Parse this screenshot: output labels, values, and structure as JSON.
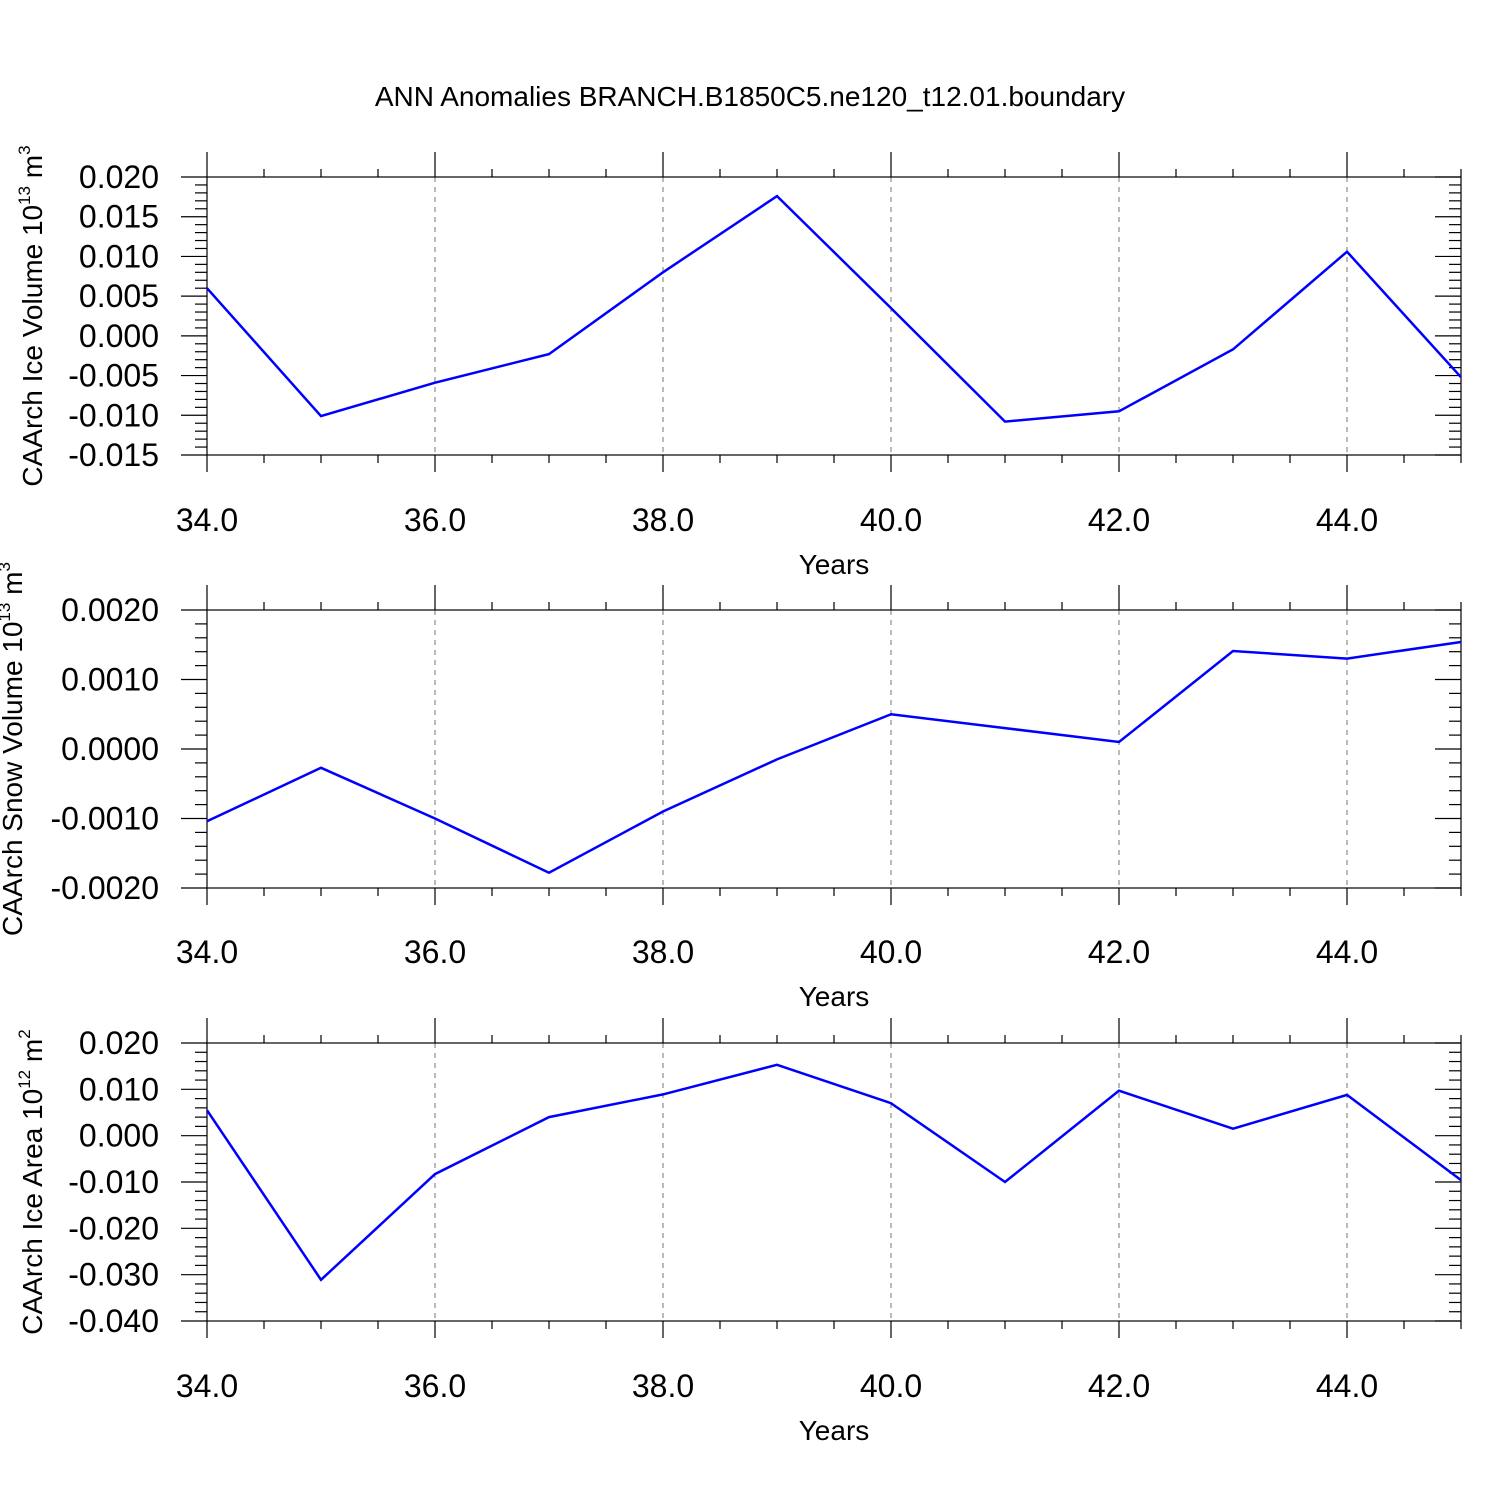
{
  "title": "ANN Anomalies BRANCH.B1850C5.ne120_t12.01.boundary",
  "colors": {
    "line": "#0000ff",
    "axis": "#000000",
    "grid": "#777777"
  },
  "chart_data": [
    {
      "type": "line",
      "ylabel": {
        "text": "CAArch Ice Volume 10",
        "sup": "13",
        "unit": " m",
        "unit_sup": "3"
      },
      "xlabel": "Years",
      "xlim": [
        34,
        45
      ],
      "xticks": [
        34,
        36,
        38,
        40,
        42,
        44
      ],
      "xtick_labels": [
        "34.0",
        "36.0",
        "38.0",
        "40.0",
        "42.0",
        "44.0"
      ],
      "ylim": [
        -0.015,
        0.02
      ],
      "yticks": [
        0.02,
        0.015,
        0.01,
        0.005,
        0,
        -0.005,
        -0.01,
        -0.015
      ],
      "ytick_labels": [
        "0.020",
        "0.015",
        "0.010",
        "0.005",
        "0.000",
        "-0.005",
        "-0.010",
        "-0.015"
      ],
      "grid": "vertical dashed",
      "x": [
        34,
        35,
        36,
        37,
        38,
        39,
        40,
        41,
        42,
        43,
        44,
        45
      ],
      "y": [
        0.006,
        -0.0101,
        -0.0059,
        -0.0023,
        0.008,
        0.0176,
        0.0035,
        -0.0108,
        -0.0095,
        -0.0017,
        0.0106,
        -0.0052
      ]
    },
    {
      "type": "line",
      "ylabel": {
        "text": "CAArch Snow Volume 10",
        "sup": "13",
        "unit": " m",
        "unit_sup": "3"
      },
      "xlabel": "Years",
      "xlim": [
        34,
        45
      ],
      "xticks": [
        34,
        36,
        38,
        40,
        42,
        44
      ],
      "xtick_labels": [
        "34.0",
        "36.0",
        "38.0",
        "40.0",
        "42.0",
        "44.0"
      ],
      "ylim": [
        -0.002,
        0.002
      ],
      "yticks": [
        0.002,
        0.001,
        0,
        -0.001,
        -0.002
      ],
      "ytick_labels": [
        "0.0020",
        "0.0010",
        "0.0000",
        "-0.0010",
        "-0.0020"
      ],
      "grid": "vertical dashed",
      "x": [
        34,
        35,
        36,
        37,
        38,
        39,
        40,
        41,
        42,
        43,
        44,
        45
      ],
      "y": [
        -0.00104,
        -0.00027,
        -0.001,
        -0.00178,
        -0.0009,
        -0.00015,
        0.0005,
        0.0003,
        0.0001,
        0.00141,
        0.0013,
        0.00154
      ]
    },
    {
      "type": "line",
      "ylabel": {
        "text": "CAArch Ice Area 10",
        "sup": "12",
        "unit": " m",
        "unit_sup": "2"
      },
      "xlabel": "Years",
      "xlim": [
        34,
        45
      ],
      "xticks": [
        34,
        36,
        38,
        40,
        42,
        44
      ],
      "xtick_labels": [
        "34.0",
        "36.0",
        "38.0",
        "40.0",
        "42.0",
        "44.0"
      ],
      "ylim": [
        -0.04,
        0.02
      ],
      "yticks": [
        0.02,
        0.01,
        0,
        -0.01,
        -0.02,
        -0.03,
        -0.04
      ],
      "ytick_labels": [
        "0.020",
        "0.010",
        "0.000",
        "-0.010",
        "-0.020",
        "-0.030",
        "-0.040"
      ],
      "grid": "vertical dashed",
      "x": [
        34,
        35,
        36,
        37,
        38,
        39,
        40,
        41,
        42,
        43,
        44,
        45
      ],
      "y": [
        0.0055,
        -0.0311,
        -0.0083,
        0.004,
        0.0089,
        0.0153,
        0.007,
        -0.01,
        0.0097,
        0.0015,
        0.0088,
        -0.0096
      ]
    }
  ]
}
